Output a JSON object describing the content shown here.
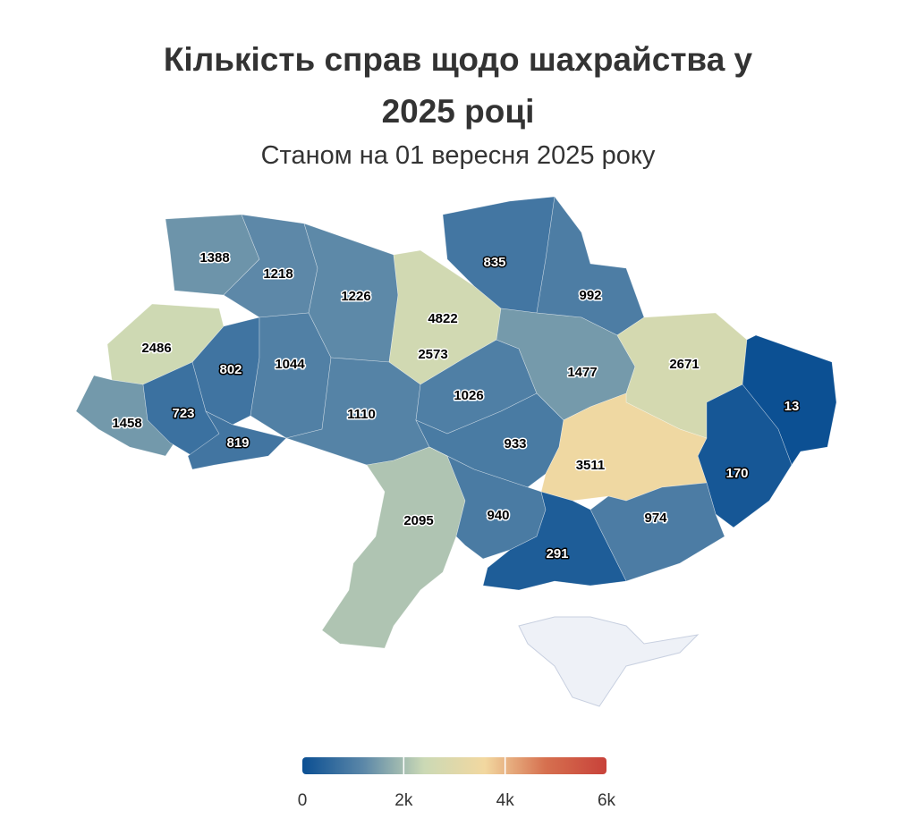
{
  "chart_data": {
    "type": "choropleth",
    "title": "Кількість справ щодо шахрайства у 2025 році",
    "subtitle": "Станом на 01 вересня 2025 року",
    "values": [
      1388,
      1218,
      1226,
      4822,
      2573,
      835,
      992,
      2486,
      802,
      1044,
      1458,
      723,
      819,
      1110,
      1026,
      1477,
      2671,
      13,
      170,
      933,
      3511,
      2095,
      940,
      974,
      291
    ],
    "colors": [
      "#0b4f93",
      "#5b87a8",
      "#cbd9b5",
      "#f2d8a0",
      "#d6704f",
      "#c8423a"
    ],
    "clim": [
      0,
      6000
    ],
    "cticks": [
      0,
      {
        "value": 2000,
        "label": "2k"
      },
      {
        "value": 4000,
        "label": "4k"
      },
      {
        "value": 6000,
        "label": "6k"
      }
    ]
  }
}
